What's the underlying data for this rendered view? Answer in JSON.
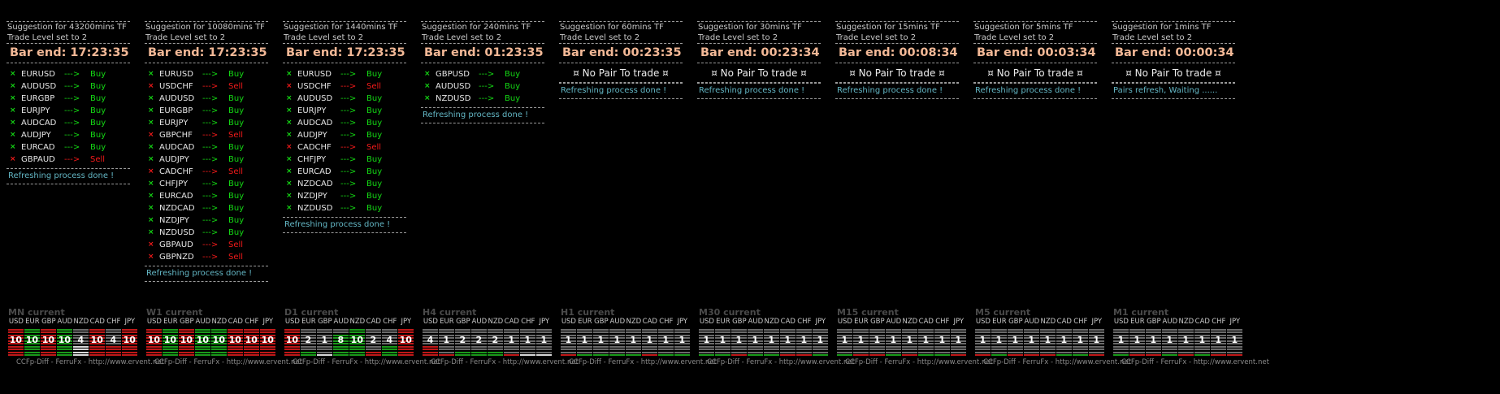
{
  "colors": {
    "buy": "#14d814",
    "sell": "#f21a1a",
    "bar_end": "#f2b896",
    "footer": "#63b6c4",
    "meter_green": "#1a9a1a",
    "meter_red": "#c01818",
    "meter_off": "#6a6a6a"
  },
  "panels": [
    {
      "title": "Suggestion for 43200mins TF",
      "subtitle": "Trade Level set to 2",
      "bar_end": "Bar end: 17:23:35",
      "pairs": [
        {
          "symbol": "EURUSD",
          "arrow": "--->",
          "signal": "Buy"
        },
        {
          "symbol": "AUDUSD",
          "arrow": "--->",
          "signal": "Buy"
        },
        {
          "symbol": "EURGBP",
          "arrow": "--->",
          "signal": "Buy"
        },
        {
          "symbol": "EURJPY",
          "arrow": "--->",
          "signal": "Buy"
        },
        {
          "symbol": "AUDCAD",
          "arrow": "--->",
          "signal": "Buy"
        },
        {
          "symbol": "AUDJPY",
          "arrow": "--->",
          "signal": "Buy"
        },
        {
          "symbol": "EURCAD",
          "arrow": "--->",
          "signal": "Buy"
        },
        {
          "symbol": "GBPAUD",
          "arrow": "--->",
          "signal": "Sell"
        }
      ],
      "no_pair": "",
      "footer": "Refreshing process done !"
    },
    {
      "title": "Suggestion for 10080mins TF",
      "subtitle": "Trade Level set to 2",
      "bar_end": "Bar end: 17:23:35",
      "pairs": [
        {
          "symbol": "EURUSD",
          "arrow": "--->",
          "signal": "Buy"
        },
        {
          "symbol": "USDCHF",
          "arrow": "--->",
          "signal": "Sell"
        },
        {
          "symbol": "AUDUSD",
          "arrow": "--->",
          "signal": "Buy"
        },
        {
          "symbol": "EURGBP",
          "arrow": "--->",
          "signal": "Buy"
        },
        {
          "symbol": "EURJPY",
          "arrow": "--->",
          "signal": "Buy"
        },
        {
          "symbol": "GBPCHF",
          "arrow": "--->",
          "signal": "Sell"
        },
        {
          "symbol": "AUDCAD",
          "arrow": "--->",
          "signal": "Buy"
        },
        {
          "symbol": "AUDJPY",
          "arrow": "--->",
          "signal": "Buy"
        },
        {
          "symbol": "CADCHF",
          "arrow": "--->",
          "signal": "Sell"
        },
        {
          "symbol": "CHFJPY",
          "arrow": "--->",
          "signal": "Buy"
        },
        {
          "symbol": "EURCAD",
          "arrow": "--->",
          "signal": "Buy"
        },
        {
          "symbol": "NZDCAD",
          "arrow": "--->",
          "signal": "Buy"
        },
        {
          "symbol": "NZDJPY",
          "arrow": "--->",
          "signal": "Buy"
        },
        {
          "symbol": "NZDUSD",
          "arrow": "--->",
          "signal": "Buy"
        },
        {
          "symbol": "GBPAUD",
          "arrow": "--->",
          "signal": "Sell"
        },
        {
          "symbol": "GBPNZD",
          "arrow": "--->",
          "signal": "Sell"
        }
      ],
      "no_pair": "",
      "footer": "Refreshing process done !"
    },
    {
      "title": "Suggestion for 1440mins TF",
      "subtitle": "Trade Level set to 2",
      "bar_end": "Bar end: 17:23:35",
      "pairs": [
        {
          "symbol": "EURUSD",
          "arrow": "--->",
          "signal": "Buy"
        },
        {
          "symbol": "USDCHF",
          "arrow": "--->",
          "signal": "Sell"
        },
        {
          "symbol": "AUDUSD",
          "arrow": "--->",
          "signal": "Buy"
        },
        {
          "symbol": "EURJPY",
          "arrow": "--->",
          "signal": "Buy"
        },
        {
          "symbol": "AUDCAD",
          "arrow": "--->",
          "signal": "Buy"
        },
        {
          "symbol": "AUDJPY",
          "arrow": "--->",
          "signal": "Buy"
        },
        {
          "symbol": "CADCHF",
          "arrow": "--->",
          "signal": "Sell"
        },
        {
          "symbol": "CHFJPY",
          "arrow": "--->",
          "signal": "Buy"
        },
        {
          "symbol": "EURCAD",
          "arrow": "--->",
          "signal": "Buy"
        },
        {
          "symbol": "NZDCAD",
          "arrow": "--->",
          "signal": "Buy"
        },
        {
          "symbol": "NZDJPY",
          "arrow": "--->",
          "signal": "Buy"
        },
        {
          "symbol": "NZDUSD",
          "arrow": "--->",
          "signal": "Buy"
        }
      ],
      "no_pair": "",
      "footer": "Refreshing process done !"
    },
    {
      "title": "Suggestion for 240mins TF",
      "subtitle": "Trade Level set to 2",
      "bar_end": "Bar end: 01:23:35",
      "pairs": [
        {
          "symbol": "GBPUSD",
          "arrow": "--->",
          "signal": "Buy"
        },
        {
          "symbol": "AUDUSD",
          "arrow": "--->",
          "signal": "Buy"
        },
        {
          "symbol": "NZDUSD",
          "arrow": "--->",
          "signal": "Buy"
        }
      ],
      "no_pair": "",
      "footer": "Refreshing process done !"
    },
    {
      "title": "Suggestion for 60mins TF",
      "subtitle": "Trade Level set to 2",
      "bar_end": "Bar end: 00:23:35",
      "pairs": [],
      "no_pair": "¤ No Pair To trade ¤",
      "footer": "Refreshing process done !"
    },
    {
      "title": "Suggestion for 30mins TF",
      "subtitle": "Trade Level set to 2",
      "bar_end": "Bar end: 00:23:34",
      "pairs": [],
      "no_pair": "¤ No Pair To trade ¤",
      "footer": "Refreshing process done !"
    },
    {
      "title": "Suggestion for 15mins TF",
      "subtitle": "Trade Level set to 2",
      "bar_end": "Bar end: 00:08:34",
      "pairs": [],
      "no_pair": "¤ No Pair To trade ¤",
      "footer": "Refreshing process done !"
    },
    {
      "title": "Suggestion for 5mins TF",
      "subtitle": "Trade Level set to 2",
      "bar_end": "Bar end: 00:03:34",
      "pairs": [],
      "no_pair": "¤ No Pair To trade ¤",
      "footer": "Refreshing process done !"
    },
    {
      "title": "Suggestion for 1mins TF",
      "subtitle": "Trade Level set to 2",
      "bar_end": "Bar end: 00:00:34",
      "pairs": [],
      "no_pair": "¤ No Pair To trade ¤",
      "footer": "Pairs refresh, Waiting ......"
    }
  ],
  "currencies": [
    "USD",
    "EUR",
    "GBP",
    "AUD",
    "NZD",
    "CAD",
    "CHF",
    "JPY"
  ],
  "meters": [
    {
      "title": "MN current",
      "strength": [
        {
          "label": "10",
          "level": 10,
          "color": "red"
        },
        {
          "label": "10",
          "level": 10,
          "color": "green"
        },
        {
          "label": "10",
          "level": 10,
          "color": "red"
        },
        {
          "label": "10",
          "level": 10,
          "color": "green"
        },
        {
          "label": "4",
          "level": 4,
          "color": "white"
        },
        {
          "label": "10",
          "level": 10,
          "color": "red"
        },
        {
          "label": "4",
          "level": 4,
          "color": "red"
        },
        {
          "label": "10",
          "level": 10,
          "color": "red"
        }
      ],
      "footer": "CCFp-Diff - FerruFx - http://www.ervent.net"
    },
    {
      "title": "W1 current",
      "strength": [
        {
          "label": "10",
          "level": 10,
          "color": "red"
        },
        {
          "label": "10",
          "level": 10,
          "color": "green"
        },
        {
          "label": "10",
          "level": 10,
          "color": "red"
        },
        {
          "label": "10",
          "level": 10,
          "color": "green"
        },
        {
          "label": "10",
          "level": 10,
          "color": "green"
        },
        {
          "label": "10",
          "level": 10,
          "color": "red"
        },
        {
          "label": "10",
          "level": 10,
          "color": "red"
        },
        {
          "label": "10",
          "level": 10,
          "color": "red"
        }
      ],
      "footer": "CCFp-Diff - FerruFx - http://www.ervent.net"
    },
    {
      "title": "D1 current",
      "strength": [
        {
          "label": "10",
          "level": 10,
          "color": "red"
        },
        {
          "label": "2",
          "level": 2,
          "color": "green"
        },
        {
          "label": "1",
          "level": 1,
          "color": "white"
        },
        {
          "label": "8",
          "level": 8,
          "color": "green"
        },
        {
          "label": "10",
          "level": 10,
          "color": "green"
        },
        {
          "label": "2",
          "level": 2,
          "color": "red"
        },
        {
          "label": "4",
          "level": 4,
          "color": "green"
        },
        {
          "label": "10",
          "level": 10,
          "color": "red"
        }
      ],
      "footer": "CCFp-Diff - FerruFx - http://www.ervent.net"
    },
    {
      "title": "H4 current",
      "strength": [
        {
          "label": "4",
          "level": 4,
          "color": "red"
        },
        {
          "label": "1",
          "level": 1,
          "color": "red"
        },
        {
          "label": "2",
          "level": 2,
          "color": "green"
        },
        {
          "label": "2",
          "level": 2,
          "color": "green"
        },
        {
          "label": "2",
          "level": 2,
          "color": "green"
        },
        {
          "label": "1",
          "level": 1,
          "color": "red"
        },
        {
          "label": "1",
          "level": 1,
          "color": "white"
        },
        {
          "label": "1",
          "level": 1,
          "color": "white"
        }
      ],
      "footer": "CCFp-Diff - FerruFx - http://www.ervent.net"
    },
    {
      "title": "H1 current",
      "strength": [
        {
          "label": "1",
          "level": 1,
          "color": "red"
        },
        {
          "label": "1",
          "level": 1,
          "color": "green"
        },
        {
          "label": "1",
          "level": 1,
          "color": "green"
        },
        {
          "label": "1",
          "level": 1,
          "color": "green"
        },
        {
          "label": "1",
          "level": 1,
          "color": "green"
        },
        {
          "label": "1",
          "level": 1,
          "color": "red"
        },
        {
          "label": "1",
          "level": 1,
          "color": "green"
        },
        {
          "label": "1",
          "level": 1,
          "color": "green"
        }
      ],
      "footer": "CCFp-Diff - FerruFx - http://www.ervent.net"
    },
    {
      "title": "M30 current",
      "strength": [
        {
          "label": "1",
          "level": 1,
          "color": "green"
        },
        {
          "label": "1",
          "level": 1,
          "color": "green"
        },
        {
          "label": "1",
          "level": 1,
          "color": "red"
        },
        {
          "label": "1",
          "level": 1,
          "color": "green"
        },
        {
          "label": "1",
          "level": 1,
          "color": "green"
        },
        {
          "label": "1",
          "level": 1,
          "color": "red"
        },
        {
          "label": "1",
          "level": 1,
          "color": "red"
        },
        {
          "label": "1",
          "level": 1,
          "color": "green"
        }
      ],
      "footer": "CCFp-Diff - FerruFx - http://www.ervent.net"
    },
    {
      "title": "M15 current",
      "strength": [
        {
          "label": "1",
          "level": 1,
          "color": "green"
        },
        {
          "label": "1",
          "level": 1,
          "color": "red"
        },
        {
          "label": "1",
          "level": 1,
          "color": "red"
        },
        {
          "label": "1",
          "level": 1,
          "color": "green"
        },
        {
          "label": "1",
          "level": 1,
          "color": "red"
        },
        {
          "label": "1",
          "level": 1,
          "color": "green"
        },
        {
          "label": "1",
          "level": 1,
          "color": "green"
        },
        {
          "label": "1",
          "level": 1,
          "color": "red"
        }
      ],
      "footer": "CCFp-Diff - FerruFx - http://www.ervent.net"
    },
    {
      "title": "M5 current",
      "strength": [
        {
          "label": "1",
          "level": 1,
          "color": "red"
        },
        {
          "label": "1",
          "level": 1,
          "color": "green"
        },
        {
          "label": "1",
          "level": 1,
          "color": "red"
        },
        {
          "label": "1",
          "level": 1,
          "color": "red"
        },
        {
          "label": "1",
          "level": 1,
          "color": "red"
        },
        {
          "label": "1",
          "level": 1,
          "color": "green"
        },
        {
          "label": "1",
          "level": 1,
          "color": "green"
        },
        {
          "label": "1",
          "level": 1,
          "color": "red"
        }
      ],
      "footer": "CCFp-Diff - FerruFx - http://www.ervent.net"
    },
    {
      "title": "M1 current",
      "strength": [
        {
          "label": "1",
          "level": 1,
          "color": "green"
        },
        {
          "label": "1",
          "level": 1,
          "color": "red"
        },
        {
          "label": "1",
          "level": 1,
          "color": "red"
        },
        {
          "label": "1",
          "level": 1,
          "color": "green"
        },
        {
          "label": "1",
          "level": 1,
          "color": "red"
        },
        {
          "label": "1",
          "level": 1,
          "color": "green"
        },
        {
          "label": "1",
          "level": 1,
          "color": "red"
        },
        {
          "label": "1",
          "level": 1,
          "color": "red"
        }
      ],
      "footer": "CCFp-Diff - FerruFx - http://www.ervent.net"
    }
  ]
}
